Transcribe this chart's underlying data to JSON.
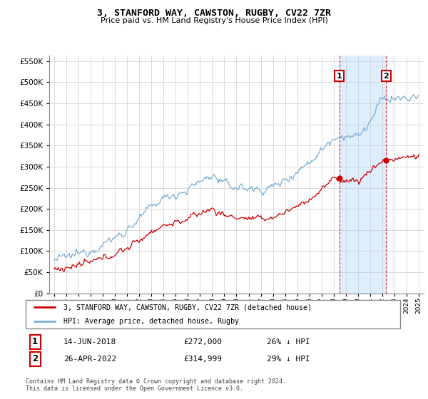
{
  "title": "3, STANFORD WAY, CAWSTON, RUGBY, CV22 7ZR",
  "subtitle": "Price paid vs. HM Land Registry's House Price Index (HPI)",
  "hpi_label": "HPI: Average price, detached house, Rugby",
  "property_label": "3, STANFORD WAY, CAWSTON, RUGBY, CV22 7ZR (detached house)",
  "transaction1_label": "14-JUN-2018",
  "transaction1_price": "£272,000",
  "transaction1_hpi": "26% ↓ HPI",
  "transaction2_label": "26-APR-2022",
  "transaction2_price": "£314,999",
  "transaction2_hpi": "29% ↓ HPI",
  "footer": "Contains HM Land Registry data © Crown copyright and database right 2024.\nThis data is licensed under the Open Government Licence v3.0.",
  "hpi_color": "#7bafd4",
  "property_color": "#cc0000",
  "shade_color": "#ddeeff",
  "transaction1_date_x": 2018.45,
  "transaction2_date_x": 2022.32,
  "ylim_min": 0,
  "ylim_max": 562500,
  "xlim_min": 1994.6,
  "xlim_max": 2025.4
}
